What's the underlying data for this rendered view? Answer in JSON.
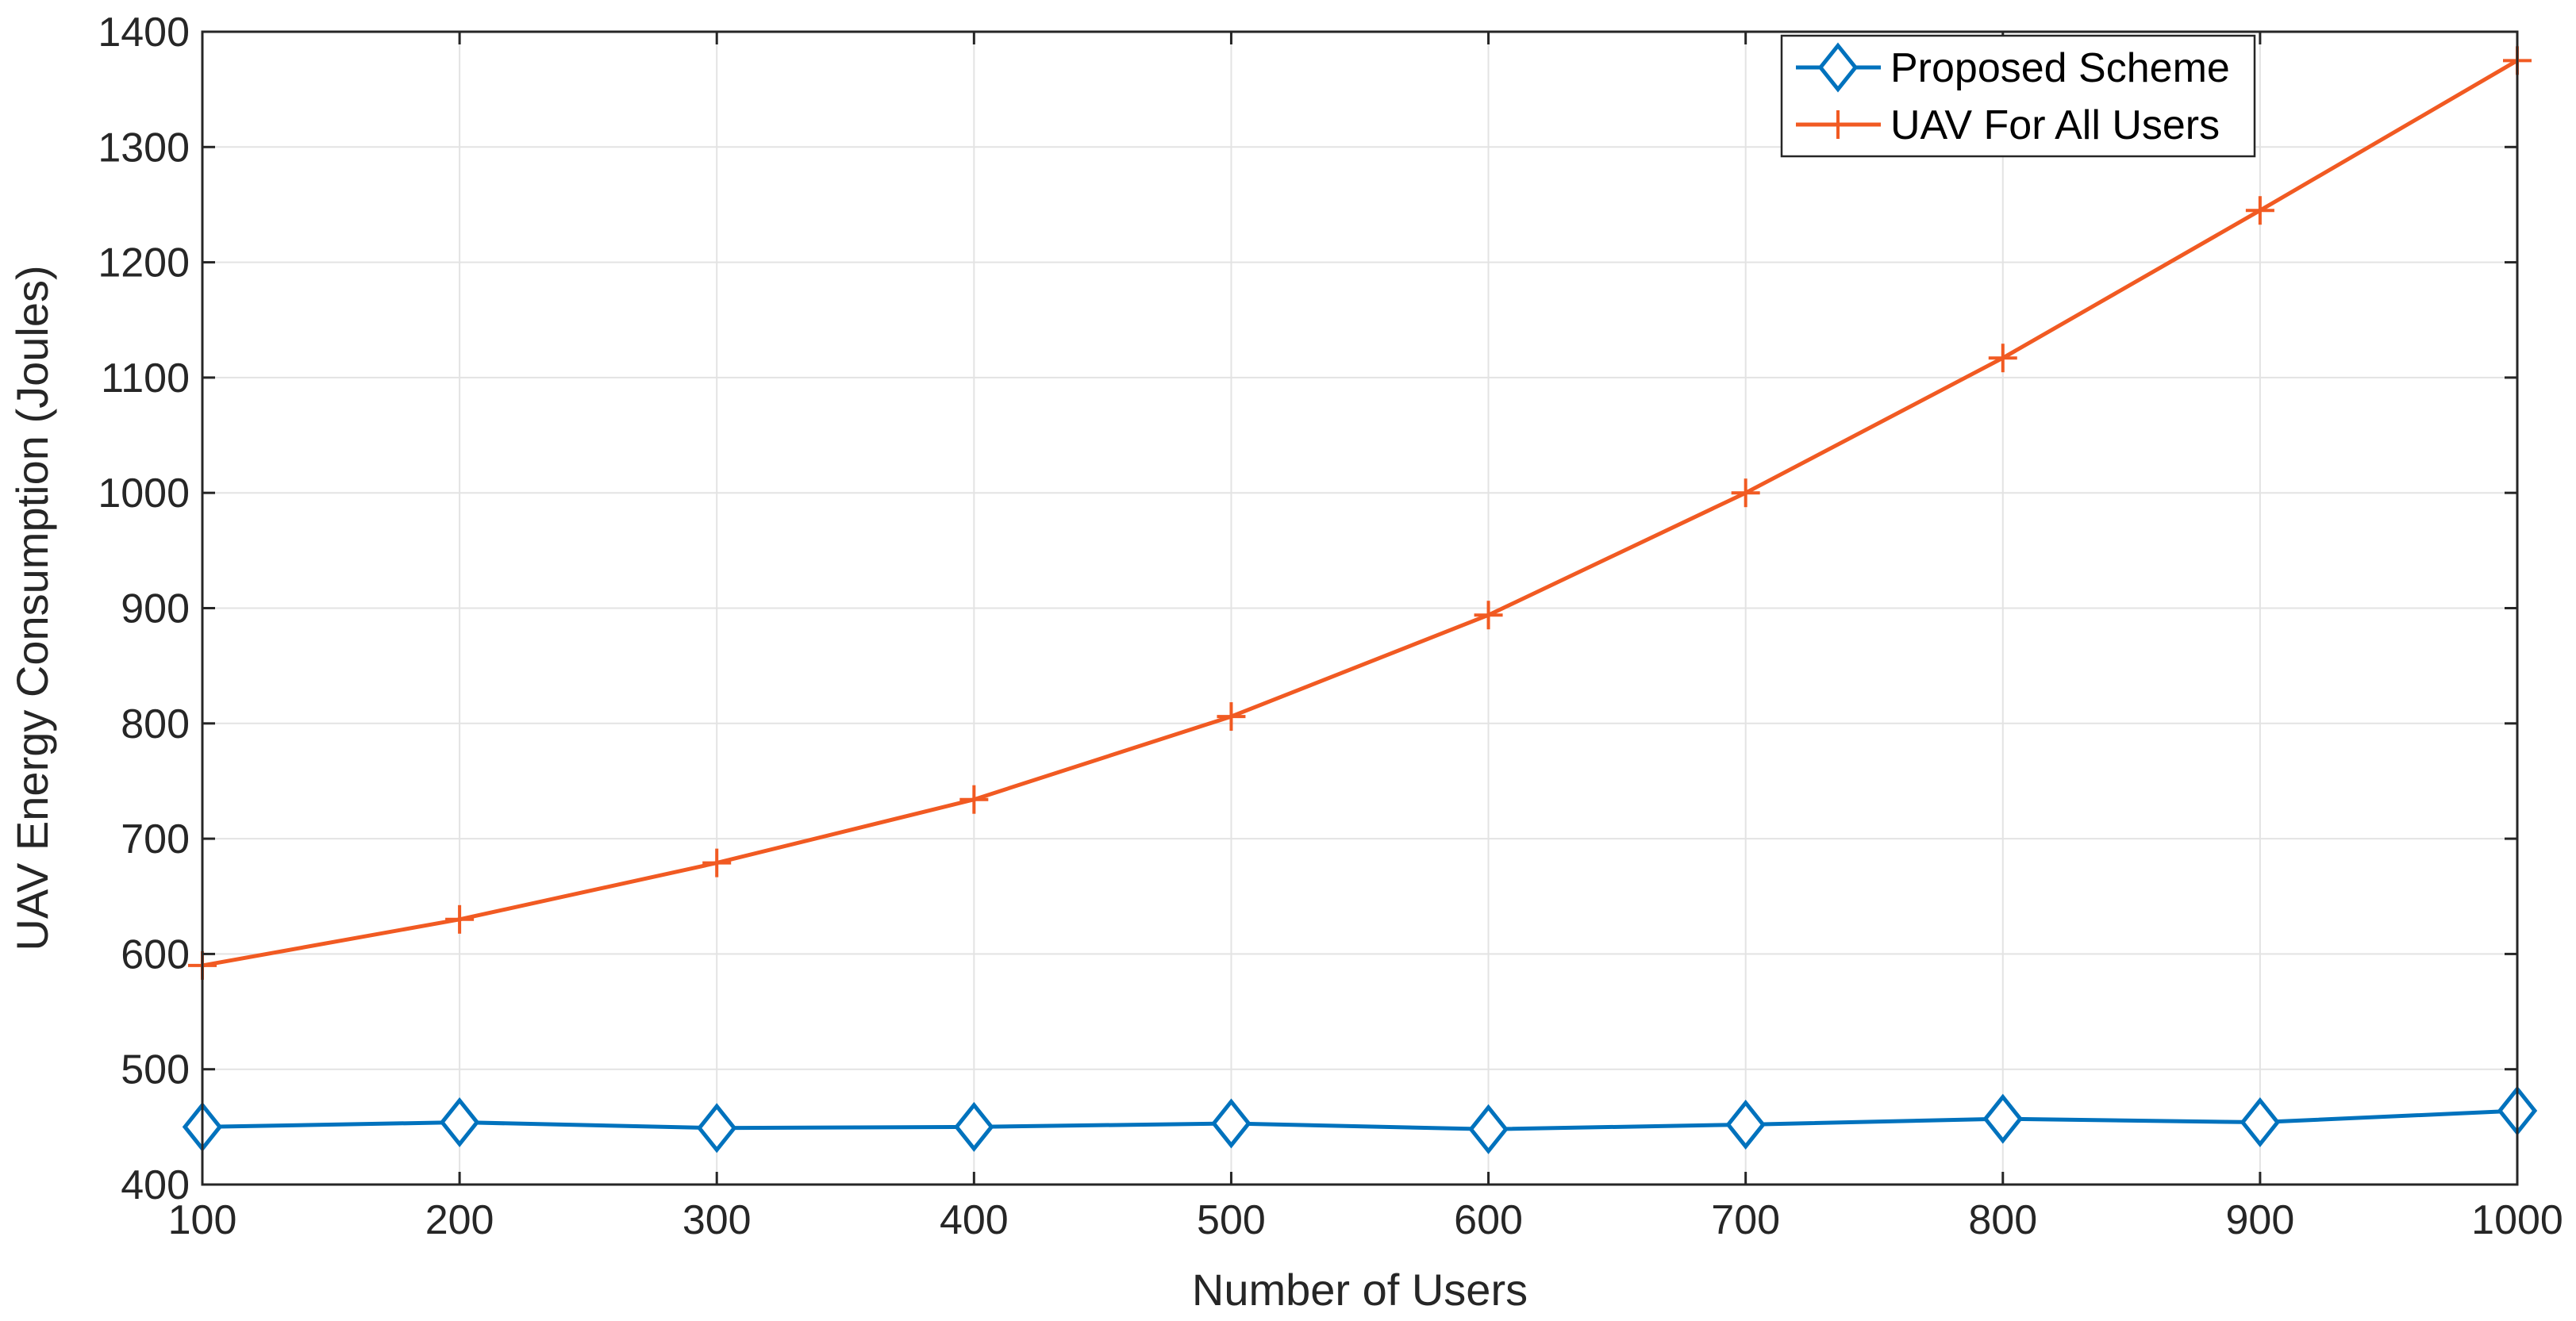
{
  "chart_data": {
    "type": "line",
    "title": "",
    "xlabel": "Number of Users",
    "ylabel": "UAV Energy Consumption (Joules)",
    "x": [
      100,
      200,
      300,
      400,
      500,
      600,
      700,
      800,
      900,
      1000
    ],
    "xlim": [
      100,
      1000
    ],
    "ylim": [
      400,
      1400
    ],
    "xticks": [
      100,
      200,
      300,
      400,
      500,
      600,
      700,
      800,
      900,
      1000
    ],
    "yticks": [
      400,
      500,
      600,
      700,
      800,
      900,
      1000,
      1100,
      1200,
      1300,
      1400
    ],
    "grid": true,
    "legend_position": "top-right",
    "series": [
      {
        "name": "Proposed Scheme",
        "color": "#0072BD",
        "marker": "diamond",
        "values": [
          450,
          454,
          449,
          450,
          453,
          448,
          452,
          457,
          454,
          464
        ]
      },
      {
        "name": "UAV For All Users",
        "color": "#F15A22",
        "marker": "plus",
        "values": [
          590,
          630,
          679,
          734,
          806,
          894,
          1000,
          1117,
          1245,
          1375
        ]
      }
    ]
  }
}
